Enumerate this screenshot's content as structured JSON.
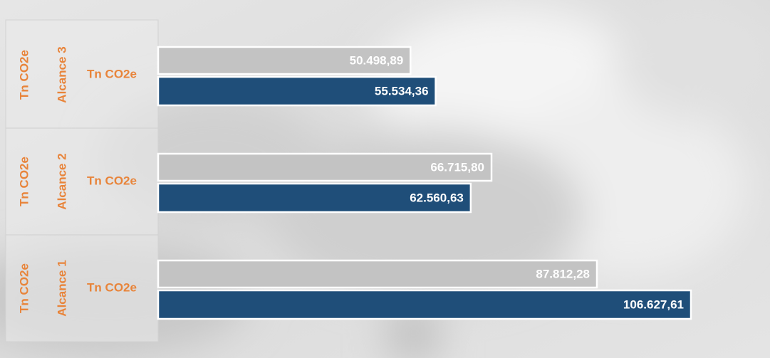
{
  "chart_data": {
    "type": "bar",
    "orientation": "horizontal",
    "categories": [
      "Alcance 3",
      "Alcance 2",
      "Alcance 1"
    ],
    "outer_labels": [
      "Tn CO2e",
      "Tn CO2e",
      "Tn CO2e"
    ],
    "inner_labels": [
      "Tn CO2e",
      "Tn CO2e",
      "Tn CO2e"
    ],
    "label_color": "#e8843a",
    "series": [
      {
        "color": "#c3c3c3",
        "values": [
          50498.89,
          66715.8,
          87812.28
        ],
        "value_labels": [
          "50.498,89",
          "66.715,80",
          "87.812,28"
        ]
      },
      {
        "color": "#1f4e79",
        "values": [
          55534.36,
          62560.63,
          106627.61
        ],
        "value_labels": [
          "55.534,36",
          "62.560,63",
          "106.627,61"
        ]
      }
    ]
  }
}
